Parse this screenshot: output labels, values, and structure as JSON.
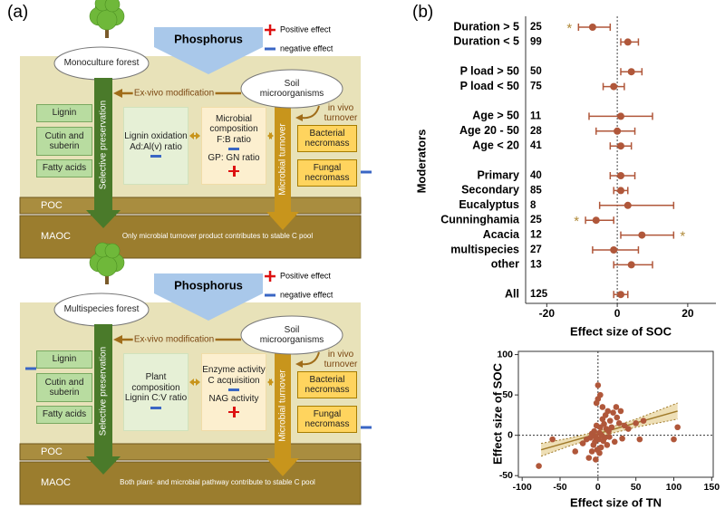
{
  "panel_a": {
    "label": "(a)",
    "diagrams": [
      {
        "forest": "Monoculture forest",
        "phosphorus": "Phosphorus",
        "positive_effect": "Positive effect",
        "negative_effect": "negative effect",
        "ex_vivo": "Ex vivo modification",
        "soil_microorganisms": "Soil microorganisms",
        "in_vivo": "in vivo turnover",
        "residues": [
          "Lignin",
          "Cutin and suberin",
          "Fatty acids"
        ],
        "selective_preservation": "Selective preservation",
        "plant_box": [
          "Lignin oxidation",
          "Ad:Al(v) ratio"
        ],
        "microbe_box": [
          "Microbial composition",
          "F:B ratio",
          "GP: GN ratio"
        ],
        "microbial_turnover": "Microbial turnover",
        "necromass": [
          "Bacterial necromass",
          "Fungal necromass"
        ],
        "poc": "POC",
        "maoc": "MAOC",
        "conclusion": "Only microbial turnover product contributes to stable C pool"
      },
      {
        "forest": "Multispecies forest",
        "phosphorus": "Phosphorus",
        "positive_effect": "Positive effect",
        "negative_effect": "negative effect",
        "ex_vivo": "Ex vivo modification",
        "soil_microorganisms": "Soil microorganisms",
        "in_vivo": "in vivo turnover",
        "residues": [
          "Lignin",
          "Cutin and suberin",
          "Fatty acids"
        ],
        "selective_preservation": "Selective preservation",
        "plant_box": [
          "Plant composition",
          "Lignin C:V ratio"
        ],
        "microbe_box": [
          "Enzyme activity",
          "C acquisition",
          "NAG activity"
        ],
        "microbial_turnover": "Microbial turnover",
        "necromass": [
          "Bacterial necromass",
          "Fungal necromass"
        ],
        "poc": "POC",
        "maoc": "MAOC",
        "conclusion": "Both plant- and microbial pathway contribute to stable C pool"
      }
    ]
  },
  "panel_b_label": "(b)",
  "chart_data": [
    {
      "type": "forest",
      "xlabel": "Effect size of SOC",
      "ylabel": "Moderators",
      "color": "#b0573a",
      "star_color": "#b08a3a",
      "categories": [
        "Duration > 5",
        "Duration < 5",
        null,
        "P load > 50",
        "P load < 50",
        null,
        "Age > 50",
        "Age 20 - 50",
        "Age < 20",
        null,
        "Primary",
        "Secondary",
        "Eucalyptus",
        "Cunninghamia",
        "Acacia",
        "multispecies",
        "other",
        null,
        "All"
      ],
      "n": [
        25,
        99,
        null,
        50,
        75,
        null,
        11,
        28,
        41,
        null,
        40,
        85,
        8,
        25,
        12,
        27,
        13,
        null,
        125
      ],
      "values": [
        -7,
        3,
        null,
        4,
        -1,
        null,
        1,
        0,
        1,
        null,
        1,
        1,
        3,
        -6,
        7,
        -1,
        4,
        null,
        1
      ],
      "ci_low": [
        -11,
        1,
        null,
        1,
        -4,
        null,
        -8,
        -6,
        -2,
        null,
        -2,
        -1,
        -5,
        -9,
        1,
        -7,
        -1,
        null,
        -1
      ],
      "ci_high": [
        -2,
        6,
        null,
        7,
        2,
        null,
        10,
        5,
        4,
        null,
        5,
        3,
        16,
        -1,
        16,
        6,
        10,
        null,
        3
      ],
      "significant": [
        true,
        false,
        false,
        false,
        false,
        false,
        false,
        false,
        false,
        false,
        false,
        false,
        false,
        true,
        true,
        false,
        false,
        false,
        false
      ],
      "significance_label": "*",
      "xlim": [
        -26,
        28
      ],
      "xticks": [
        -20,
        0,
        20
      ]
    },
    {
      "type": "scatter",
      "xlabel": "Effect size of TN",
      "ylabel": "Effect size of SOC",
      "color": "#b0573a",
      "x": [
        -78,
        -60,
        -30,
        -20,
        -15,
        -12,
        -10,
        -8,
        -6,
        -5,
        -4,
        -3,
        -2,
        -1,
        0,
        0,
        1,
        2,
        3,
        4,
        5,
        6,
        7,
        8,
        9,
        10,
        11,
        12,
        13,
        14,
        15,
        16,
        18,
        20,
        22,
        24,
        25,
        28,
        30,
        32,
        35,
        40,
        50,
        55,
        60,
        100,
        105,
        -8,
        -3,
        2,
        3,
        6,
        -2
      ],
      "y": [
        -38,
        -5,
        -20,
        -10,
        -5,
        -28,
        -3,
        2,
        -12,
        5,
        -8,
        -2,
        12,
        -18,
        62,
        45,
        -5,
        3,
        10,
        -15,
        0,
        20,
        -7,
        14,
        -3,
        25,
        8,
        -12,
        30,
        5,
        -2,
        18,
        10,
        28,
        -8,
        35,
        22,
        15,
        30,
        -4,
        12,
        8,
        15,
        -5,
        18,
        -5,
        10,
        -20,
        -30,
        -22,
        50,
        35,
        40
      ],
      "trend": {
        "x": [
          -75,
          105
        ],
        "y": [
          -18,
          30
        ]
      },
      "band": {
        "x": [
          -75,
          -40,
          0,
          50,
          105
        ],
        "lower": [
          -26,
          -14,
          -2,
          10,
          20
        ],
        "upper": [
          -10,
          -4,
          5,
          20,
          40
        ]
      },
      "xlim": [
        -105,
        152
      ],
      "ylim": [
        -52,
        104
      ],
      "xticks": [
        -100,
        -50,
        0,
        50,
        100,
        150
      ],
      "yticks": [
        -50,
        0,
        50,
        100
      ]
    }
  ]
}
